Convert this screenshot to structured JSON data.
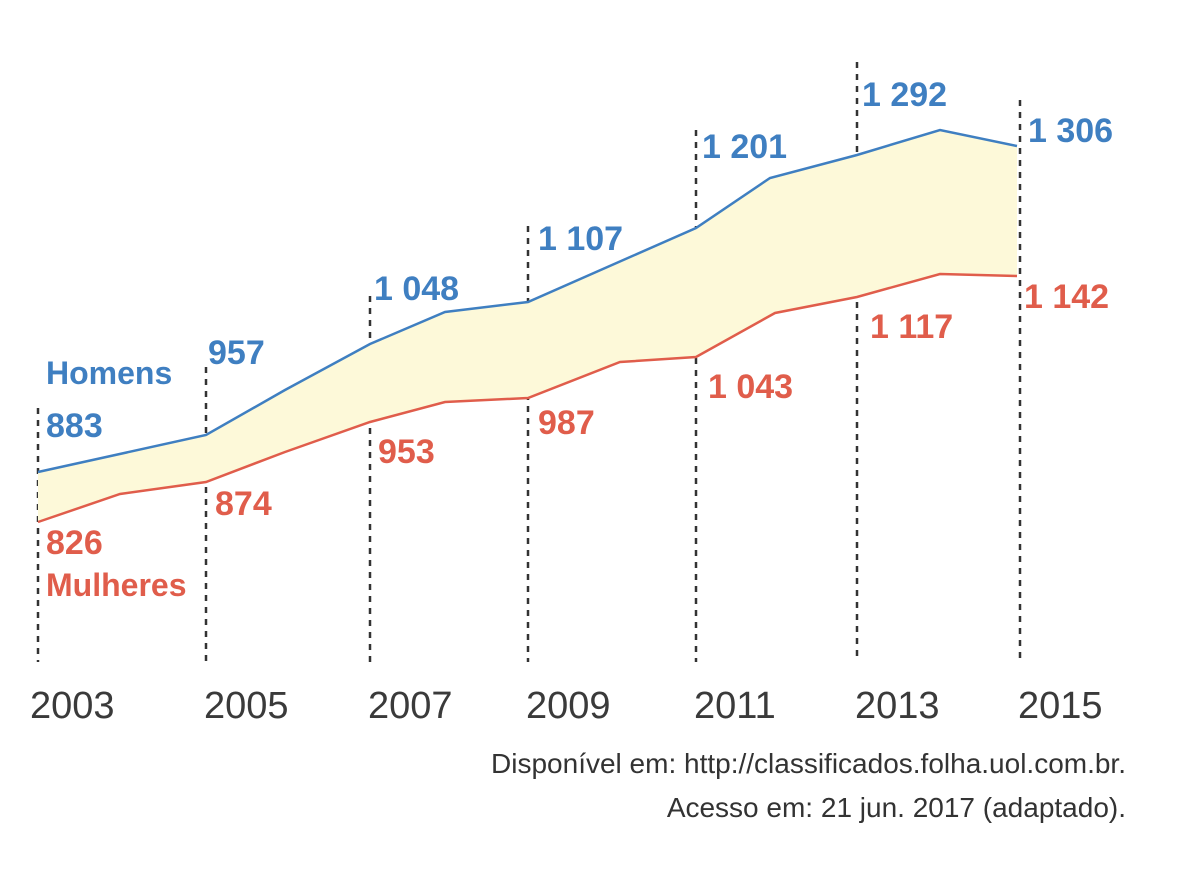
{
  "chart_data": {
    "type": "area",
    "title": "",
    "xlabel": "",
    "ylabel": "",
    "categories": [
      "2003",
      "2005",
      "2007",
      "2009",
      "2011",
      "2013",
      "2015"
    ],
    "series": [
      {
        "name": "Homens",
        "color": "#3f7fc1",
        "values": [
          883,
          957,
          1048,
          1107,
          1201,
          1292,
          1306
        ],
        "labels": [
          "883",
          "957",
          "1 048",
          "1 107",
          "1 201",
          "1 292",
          "1 306"
        ]
      },
      {
        "name": "Mulheres",
        "color": "#e05d4b",
        "values": [
          826,
          874,
          953,
          987,
          1043,
          1117,
          1142
        ],
        "labels": [
          "826",
          "874",
          "953",
          "987",
          "1 043",
          "1 117",
          "1 142"
        ]
      }
    ],
    "fill_between_color": "#fdf9d9",
    "grid": "vertical dashed lines at each labeled year",
    "legend": "inline labels"
  },
  "source": {
    "line1": "Disponível em: http://classificados.folha.uol.com.br.",
    "line2": "Acesso em: 21 jun. 2017 (adaptado)."
  }
}
